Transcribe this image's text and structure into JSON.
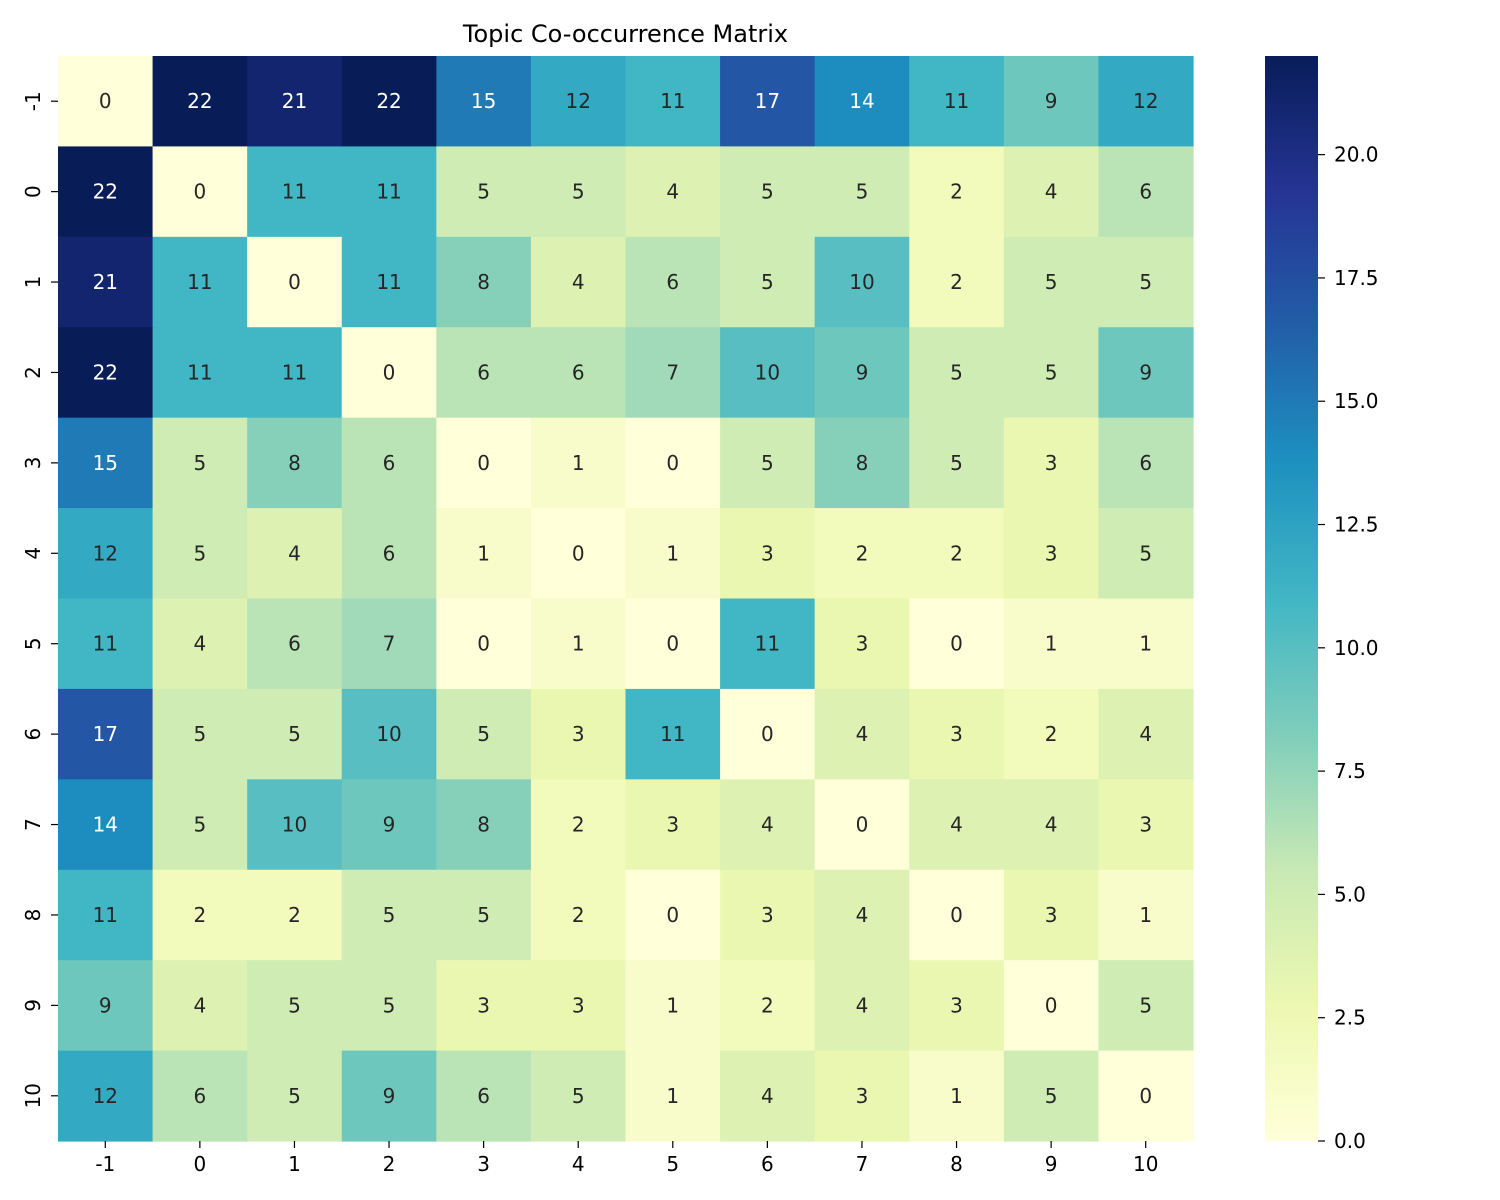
{
  "chart_data": {
    "type": "heatmap",
    "title": "Topic Co-occurrence Matrix",
    "xlabel": "",
    "ylabel": "",
    "x_tick_labels": [
      "-1",
      "0",
      "1",
      "2",
      "3",
      "4",
      "5",
      "6",
      "7",
      "8",
      "9",
      "10"
    ],
    "y_tick_labels": [
      "-1",
      "0",
      "1",
      "2",
      "3",
      "4",
      "5",
      "6",
      "7",
      "8",
      "9",
      "10"
    ],
    "values": [
      [
        0,
        22,
        21,
        22,
        15,
        12,
        11,
        17,
        14,
        11,
        9,
        12
      ],
      [
        22,
        0,
        11,
        11,
        5,
        5,
        4,
        5,
        5,
        2,
        4,
        6
      ],
      [
        21,
        11,
        0,
        11,
        8,
        4,
        6,
        5,
        10,
        2,
        5,
        5
      ],
      [
        22,
        11,
        11,
        0,
        6,
        6,
        7,
        10,
        9,
        5,
        5,
        9
      ],
      [
        15,
        5,
        8,
        6,
        0,
        1,
        0,
        5,
        8,
        5,
        3,
        6
      ],
      [
        12,
        5,
        4,
        6,
        1,
        0,
        1,
        3,
        2,
        2,
        3,
        5
      ],
      [
        11,
        4,
        6,
        7,
        0,
        1,
        0,
        11,
        3,
        0,
        1,
        1
      ],
      [
        17,
        5,
        5,
        10,
        5,
        3,
        11,
        0,
        4,
        3,
        2,
        4
      ],
      [
        14,
        5,
        10,
        9,
        8,
        2,
        3,
        4,
        0,
        4,
        4,
        3
      ],
      [
        11,
        2,
        2,
        5,
        5,
        2,
        0,
        3,
        4,
        0,
        3,
        1
      ],
      [
        9,
        4,
        5,
        5,
        3,
        3,
        1,
        2,
        4,
        3,
        0,
        5
      ],
      [
        12,
        6,
        5,
        9,
        6,
        5,
        1,
        4,
        3,
        1,
        5,
        0
      ]
    ],
    "colormap": "YlGnBu",
    "vmin": 0,
    "vmax": 22,
    "annotations": true,
    "colorbar": {
      "ticks": [
        0.0,
        2.5,
        5.0,
        7.5,
        10.0,
        12.5,
        15.0,
        17.5,
        20.0
      ],
      "tick_labels": [
        "0.0",
        "2.5",
        "5.0",
        "7.5",
        "10.0",
        "12.5",
        "15.0",
        "17.5",
        "20.0"
      ]
    },
    "grid": false,
    "legend": "colorbar-right"
  },
  "colors": {
    "colormap_stops": [
      "#ffffd9",
      "#edf8b1",
      "#c7e9b4",
      "#7fcdbb",
      "#41b6c4",
      "#1d91c0",
      "#225ea8",
      "#253494",
      "#081d58"
    ],
    "text_dark": "#262626",
    "text_light": "#ffffff",
    "axis": "#000000"
  }
}
